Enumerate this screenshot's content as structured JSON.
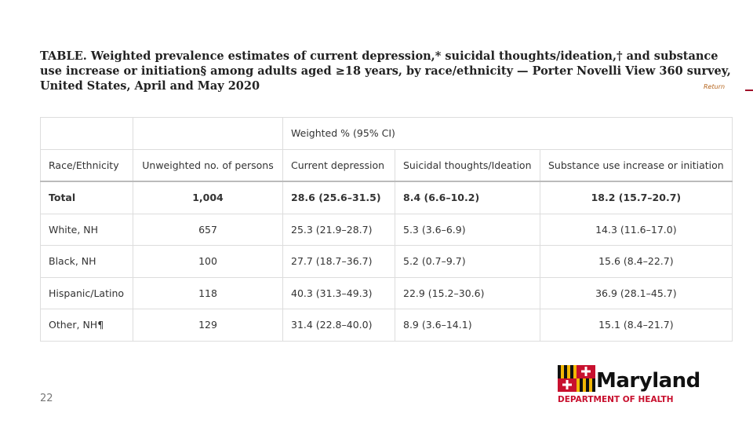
{
  "header": {
    "title": "TABLE. Weighted prevalence estimates of current depression,* suicidal thoughts/ideation,† and substance use increase or initiation§ among adults aged ≥18 years, by race/ethnicity — Porter Novelli View 360 survey, United States, April and May 2020",
    "return_link": "Return"
  },
  "table": {
    "group_header": "Weighted % (95% CI)",
    "columns": [
      "Race/Ethnicity",
      "Unweighted no. of persons",
      "Current depression",
      "Suicidal thoughts/Ideation",
      "Substance use increase or initiation"
    ],
    "rows": [
      [
        "Total",
        "1,004",
        "28.6 (25.6–31.5)",
        "8.4 (6.6–10.2)",
        "18.2 (15.7–20.7)"
      ],
      [
        "White, NH",
        "657",
        "25.3 (21.9–28.7)",
        "5.3 (3.6–6.9)",
        "14.3 (11.6–17.0)"
      ],
      [
        "Black, NH",
        "100",
        "27.7 (18.7–36.7)",
        "5.2 (0.7–9.7)",
        "15.6 (8.4–22.7)"
      ],
      [
        "Hispanic/Latino",
        "118",
        "40.3 (31.3–49.3)",
        "22.9 (15.2–30.6)",
        "36.9 (28.1–45.7)"
      ],
      [
        "Other, NH¶",
        "129",
        "31.4 (22.8–40.0)",
        "8.9 (3.6–14.1)",
        "15.1 (8.4–21.7)"
      ]
    ]
  },
  "footer": {
    "page_number": "22",
    "logo_name": "Maryland",
    "logo_subtitle": "DEPARTMENT OF HEALTH"
  }
}
